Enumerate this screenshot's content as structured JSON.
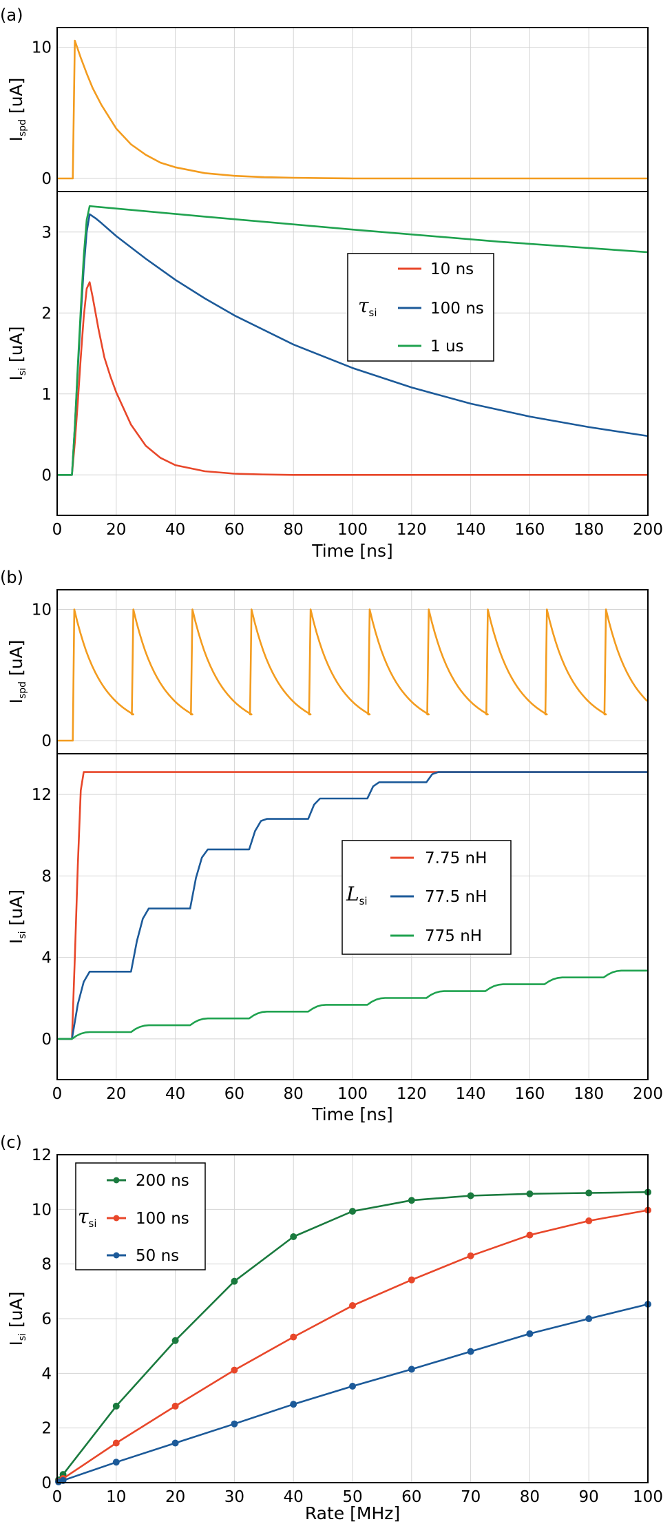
{
  "colors": {
    "orange": "#f39c1f",
    "red": "#e8472a",
    "blue": "#1c5a99",
    "green": "#1fa24f",
    "grid": "#d4d4d4"
  },
  "chart_data": [
    {
      "panel_label": "(a)",
      "type": "line",
      "xlabel": "Time [ns]",
      "xlim": [
        0,
        200
      ],
      "x_ticks": [
        "0",
        "20",
        "40",
        "60",
        "80",
        "100",
        "120",
        "140",
        "160",
        "180",
        "200"
      ],
      "top": {
        "ylabel": "I",
        "ylabel_sub": "spd",
        "ylabel_unit": "[uA]",
        "ylim": [
          -1,
          11.5
        ],
        "y_ticks": [
          "0",
          "10"
        ],
        "series": [
          {
            "color": "#f39c1f",
            "x": [
              0,
              5,
              5.3,
              6,
              8,
              10,
              12,
              15,
              20,
              25,
              30,
              35,
              40,
              50,
              60,
              70,
              80,
              90,
              100,
              120,
              140,
              160,
              180,
              200
            ],
            "y": [
              0,
              0,
              0,
              10.5,
              9.2,
              8.0,
              6.9,
              5.6,
              3.8,
              2.6,
              1.8,
              1.2,
              0.85,
              0.4,
              0.2,
              0.1,
              0.05,
              0.02,
              0,
              0,
              0,
              0,
              0,
              0
            ]
          }
        ]
      },
      "bottom": {
        "ylabel": "I",
        "ylabel_sub": "si",
        "ylabel_unit": "[uA]",
        "ylim": [
          -0.5,
          3.5
        ],
        "y_ticks": [
          "0",
          "1",
          "2",
          "3"
        ],
        "legend_symbol": "τ",
        "legend_sub": "si",
        "legend_placement": "center-right",
        "series": [
          {
            "name": "10 ns",
            "color": "#e8472a",
            "x": [
              0,
              5,
              6,
              7,
              8,
              9,
              10,
              11,
              12,
              14,
              16,
              18,
              20,
              25,
              30,
              35,
              40,
              50,
              60,
              70,
              80,
              100,
              120,
              140,
              160,
              180,
              200
            ],
            "y": [
              0,
              0,
              0.4,
              0.9,
              1.45,
              1.95,
              2.3,
              2.38,
              2.2,
              1.8,
              1.45,
              1.22,
              1.02,
              0.62,
              0.36,
              0.21,
              0.12,
              0.045,
              0.015,
              0.005,
              0,
              0,
              0,
              0,
              0,
              0,
              0
            ]
          },
          {
            "name": "100 ns",
            "color": "#1c5a99",
            "x": [
              0,
              5,
              6,
              7,
              8,
              9,
              10,
              11,
              13,
              15,
              20,
              30,
              40,
              50,
              60,
              80,
              100,
              120,
              140,
              160,
              180,
              200
            ],
            "y": [
              0,
              0,
              0.6,
              1.3,
              1.95,
              2.55,
              3.0,
              3.22,
              3.17,
              3.11,
              2.95,
              2.67,
              2.41,
              2.18,
              1.97,
              1.61,
              1.32,
              1.08,
              0.88,
              0.72,
              0.59,
              0.48
            ]
          },
          {
            "name": "1 us",
            "color": "#1fa24f",
            "x": [
              0,
              5,
              6,
              7,
              8,
              9,
              10,
              11,
              20,
              50,
              100,
              150,
              200
            ],
            "y": [
              0,
              0,
              0.6,
              1.35,
              2.05,
              2.7,
              3.15,
              3.32,
              3.29,
              3.19,
              3.03,
              2.88,
              2.75
            ]
          }
        ]
      }
    },
    {
      "panel_label": "(b)",
      "type": "line",
      "xlabel": "Time [ns]",
      "xlim": [
        0,
        200
      ],
      "x_ticks": [
        "0",
        "20",
        "40",
        "60",
        "80",
        "100",
        "120",
        "140",
        "160",
        "180",
        "200"
      ],
      "top": {
        "ylabel": "I",
        "ylabel_sub": "spd",
        "ylabel_unit": "[uA]",
        "ylim": [
          -1,
          11.5
        ],
        "y_ticks": [
          "0",
          "10"
        ],
        "series": [
          {
            "color": "#f39c1f",
            "spikes": {
              "start": 5,
              "period": 20,
              "count": 10,
              "peak": 10,
              "trough": 2,
              "tau": 8.5
            }
          }
        ]
      },
      "bottom": {
        "ylabel": "I",
        "ylabel_sub": "si",
        "ylabel_unit": "[uA]",
        "ylim": [
          -2,
          14
        ],
        "y_ticks": [
          "0",
          "4",
          "8",
          "12"
        ],
        "legend_symbol": "L",
        "legend_sub": "si",
        "legend_placement": "center-right",
        "series": [
          {
            "name": "7.75 nH",
            "color": "#e8472a",
            "x": [
              0,
              5,
              6,
              7,
              8,
              9,
              200
            ],
            "y": [
              0,
              0,
              4,
              8.5,
              12.2,
              13.1,
              13.1
            ]
          },
          {
            "name": "77.5 nH",
            "color": "#1c5a99",
            "x": [
              0,
              5,
              7,
              9,
              11,
              25,
              27,
              29,
              31,
              45,
              47,
              49,
              51,
              65,
              67,
              69,
              71,
              85,
              87,
              89,
              91,
              105,
              107,
              109,
              111,
              125,
              127,
              129,
              131,
              200
            ],
            "y": [
              0,
              0,
              1.7,
              2.8,
              3.3,
              3.3,
              4.8,
              5.9,
              6.4,
              6.4,
              7.9,
              8.9,
              9.3,
              9.3,
              10.2,
              10.7,
              10.8,
              10.8,
              11.5,
              11.8,
              11.8,
              11.8,
              12.4,
              12.6,
              12.6,
              12.6,
              13.0,
              13.1,
              13.1,
              13.1
            ]
          },
          {
            "name": "775 nH",
            "color": "#1fa24f",
            "steps": {
              "start": 5,
              "period": 20,
              "count": 10,
              "increment": 0.335,
              "rise": 6
            }
          }
        ]
      }
    },
    {
      "panel_label": "(c)",
      "type": "line",
      "xlabel": "Rate [MHz]",
      "ylabel": "I",
      "ylabel_sub": "si",
      "ylabel_unit": "[uA]",
      "xlim": [
        0,
        100
      ],
      "ylim": [
        0,
        12
      ],
      "x_ticks": [
        "0",
        "10",
        "20",
        "30",
        "40",
        "50",
        "60",
        "70",
        "80",
        "90",
        "100"
      ],
      "y_ticks": [
        "0",
        "2",
        "4",
        "6",
        "8",
        "10",
        "12"
      ],
      "legend_symbol": "τ",
      "legend_sub": "si",
      "legend_placement": "top-left",
      "series": [
        {
          "name": "200 ns",
          "color": "#1a7a3e",
          "x": [
            0,
            1,
            10,
            20,
            30,
            40,
            50,
            60,
            70,
            80,
            90,
            100
          ],
          "y": [
            0.1,
            0.3,
            2.8,
            5.2,
            7.37,
            9.0,
            9.93,
            10.33,
            10.5,
            10.57,
            10.6,
            10.63
          ]
        },
        {
          "name": "100 ns",
          "color": "#e8472a",
          "x": [
            0,
            1,
            10,
            20,
            30,
            40,
            50,
            60,
            70,
            80,
            90,
            100
          ],
          "y": [
            0.05,
            0.15,
            1.45,
            2.8,
            4.12,
            5.33,
            6.48,
            7.42,
            8.3,
            9.06,
            9.58,
            9.97
          ]
        },
        {
          "name": "50 ns",
          "color": "#1c5a99",
          "x": [
            0,
            1,
            10,
            20,
            30,
            40,
            50,
            60,
            70,
            80,
            90,
            100
          ],
          "y": [
            0.03,
            0.08,
            0.75,
            1.45,
            2.15,
            2.87,
            3.53,
            4.15,
            4.8,
            5.45,
            6.0,
            6.53
          ]
        }
      ]
    }
  ]
}
